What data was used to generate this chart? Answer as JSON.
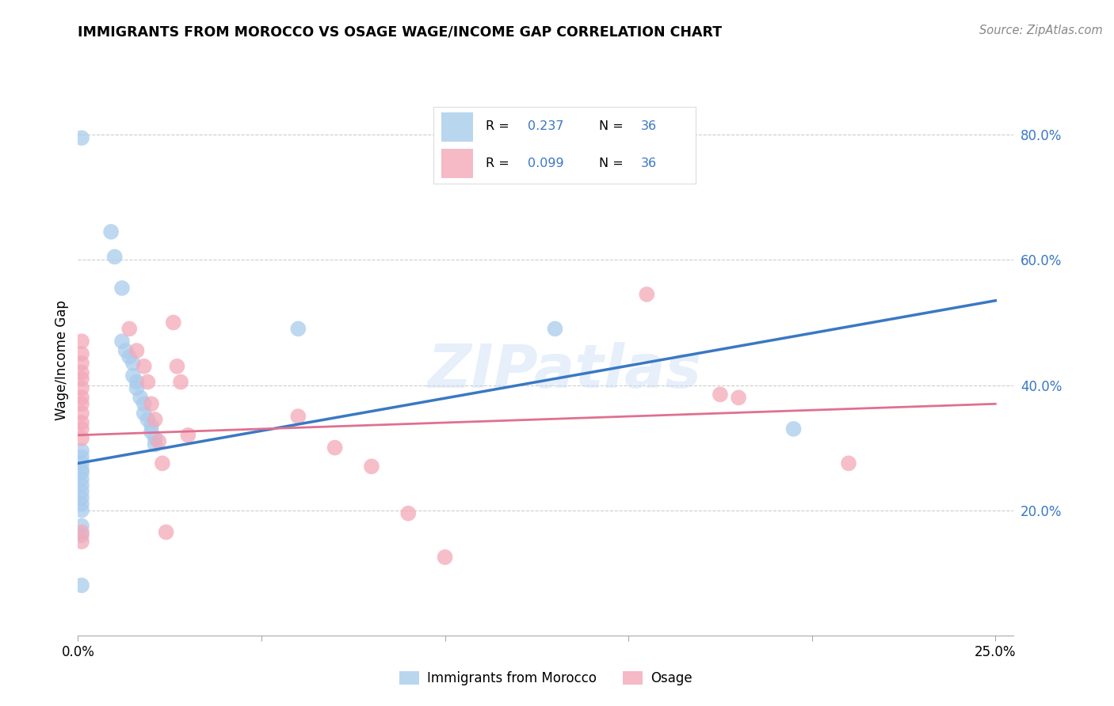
{
  "title": "IMMIGRANTS FROM MOROCCO VS OSAGE WAGE/INCOME GAP CORRELATION CHART",
  "source": "Source: ZipAtlas.com",
  "ylabel": "Wage/Income Gap",
  "watermark": "ZIPatlas",
  "blue_color": "#A8CCEC",
  "pink_color": "#F4A8B8",
  "blue_line_color": "#3A78C3",
  "pink_line_color": "#E07090",
  "legend_text_color": "#3A78C3",
  "blue_scatter": [
    [
      0.001,
      0.795
    ],
    [
      0.009,
      0.645
    ],
    [
      0.01,
      0.605
    ],
    [
      0.012,
      0.555
    ],
    [
      0.012,
      0.47
    ],
    [
      0.013,
      0.455
    ],
    [
      0.014,
      0.445
    ],
    [
      0.015,
      0.435
    ],
    [
      0.015,
      0.415
    ],
    [
      0.016,
      0.405
    ],
    [
      0.016,
      0.395
    ],
    [
      0.017,
      0.38
    ],
    [
      0.018,
      0.37
    ],
    [
      0.018,
      0.355
    ],
    [
      0.019,
      0.345
    ],
    [
      0.02,
      0.335
    ],
    [
      0.02,
      0.325
    ],
    [
      0.021,
      0.315
    ],
    [
      0.021,
      0.305
    ],
    [
      0.001,
      0.295
    ],
    [
      0.001,
      0.285
    ],
    [
      0.001,
      0.275
    ],
    [
      0.001,
      0.265
    ],
    [
      0.001,
      0.26
    ],
    [
      0.001,
      0.25
    ],
    [
      0.001,
      0.24
    ],
    [
      0.001,
      0.23
    ],
    [
      0.001,
      0.22
    ],
    [
      0.001,
      0.21
    ],
    [
      0.001,
      0.2
    ],
    [
      0.001,
      0.175
    ],
    [
      0.001,
      0.16
    ],
    [
      0.001,
      0.08
    ],
    [
      0.13,
      0.49
    ],
    [
      0.195,
      0.33
    ],
    [
      0.06,
      0.49
    ]
  ],
  "pink_scatter": [
    [
      0.001,
      0.47
    ],
    [
      0.001,
      0.45
    ],
    [
      0.001,
      0.435
    ],
    [
      0.001,
      0.42
    ],
    [
      0.001,
      0.41
    ],
    [
      0.001,
      0.395
    ],
    [
      0.001,
      0.38
    ],
    [
      0.001,
      0.37
    ],
    [
      0.001,
      0.355
    ],
    [
      0.001,
      0.34
    ],
    [
      0.001,
      0.33
    ],
    [
      0.001,
      0.315
    ],
    [
      0.001,
      0.165
    ],
    [
      0.001,
      0.15
    ],
    [
      0.014,
      0.49
    ],
    [
      0.016,
      0.455
    ],
    [
      0.018,
      0.43
    ],
    [
      0.019,
      0.405
    ],
    [
      0.02,
      0.37
    ],
    [
      0.021,
      0.345
    ],
    [
      0.022,
      0.31
    ],
    [
      0.023,
      0.275
    ],
    [
      0.024,
      0.165
    ],
    [
      0.026,
      0.5
    ],
    [
      0.027,
      0.43
    ],
    [
      0.028,
      0.405
    ],
    [
      0.03,
      0.32
    ],
    [
      0.06,
      0.35
    ],
    [
      0.07,
      0.3
    ],
    [
      0.08,
      0.27
    ],
    [
      0.09,
      0.195
    ],
    [
      0.1,
      0.125
    ],
    [
      0.155,
      0.545
    ],
    [
      0.175,
      0.385
    ],
    [
      0.18,
      0.38
    ],
    [
      0.21,
      0.275
    ]
  ],
  "xlim": [
    0.0,
    0.255
  ],
  "ylim": [
    0.0,
    0.88
  ],
  "xtick_positions": [
    0.0,
    0.05,
    0.1,
    0.15,
    0.2,
    0.25
  ],
  "ytick_right_positions": [
    0.2,
    0.4,
    0.6,
    0.8
  ],
  "ytick_right_labels": [
    "20.0%",
    "40.0%",
    "60.0%",
    "80.0%"
  ],
  "blue_line_x": [
    0.0,
    0.25
  ],
  "blue_line_y": [
    0.275,
    0.535
  ],
  "pink_line_x": [
    0.0,
    0.25
  ],
  "pink_line_y": [
    0.32,
    0.37
  ],
  "background_color": "#FFFFFF",
  "grid_color": "#CCCCCC",
  "legend_r_blue": "0.237",
  "legend_n_blue": "36",
  "legend_r_pink": "0.099",
  "legend_n_pink": "36"
}
